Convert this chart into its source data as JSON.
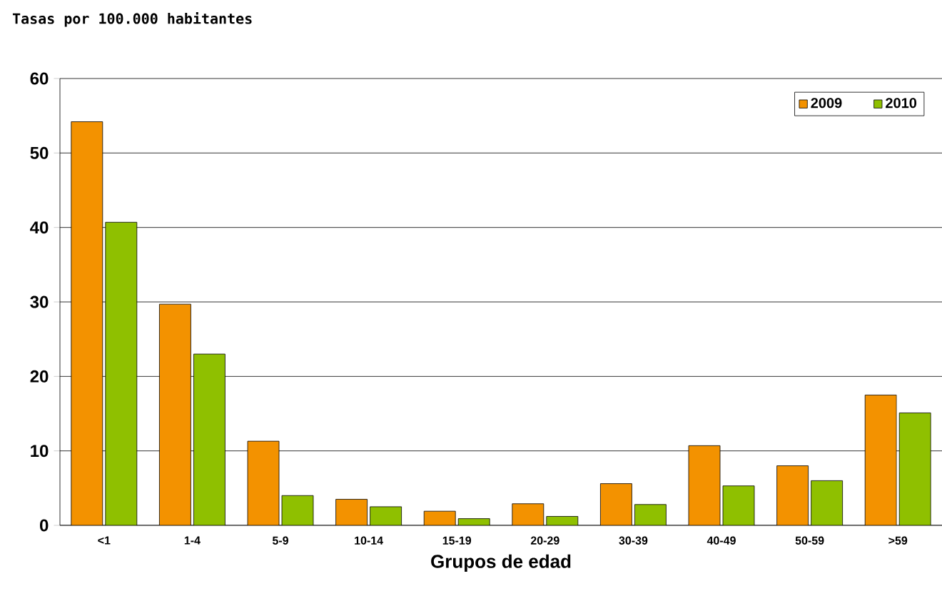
{
  "chart_data": {
    "type": "bar",
    "title": "Tasas por 100.000 habitantes",
    "xlabel": "Grupos de edad",
    "categories": [
      "<1",
      "1-4",
      "5-9",
      "10-14",
      "15-19",
      "20-29",
      "30-39",
      "40-49",
      "50-59",
      ">59"
    ],
    "series": [
      {
        "name": "2009",
        "color": "#f39200",
        "values": [
          54.2,
          29.7,
          11.3,
          3.5,
          1.9,
          2.9,
          5.6,
          10.7,
          8.0,
          17.5
        ]
      },
      {
        "name": "2010",
        "color": "#8fc000",
        "values": [
          40.7,
          23.0,
          4.0,
          2.5,
          0.9,
          1.2,
          2.8,
          5.3,
          6.0,
          15.1
        ]
      }
    ],
    "ylim": [
      0,
      60
    ],
    "yticks": [
      0,
      10,
      20,
      30,
      40,
      50,
      60
    ],
    "grid": "y",
    "legend": "top right"
  }
}
